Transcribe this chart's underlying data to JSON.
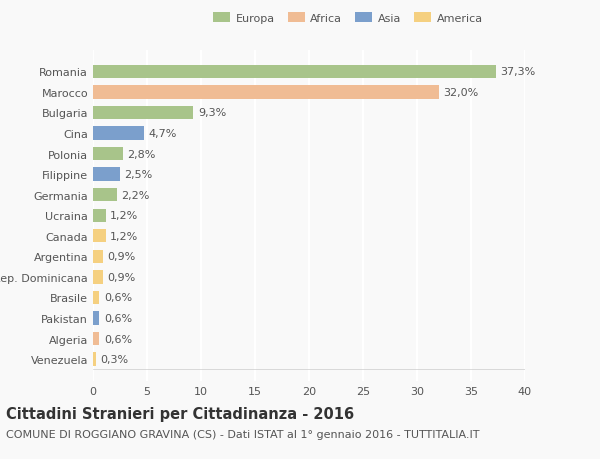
{
  "countries": [
    "Romania",
    "Marocco",
    "Bulgaria",
    "Cina",
    "Polonia",
    "Filippine",
    "Germania",
    "Ucraina",
    "Canada",
    "Argentina",
    "Rep. Dominicana",
    "Brasile",
    "Pakistan",
    "Algeria",
    "Venezuela"
  ],
  "values": [
    37.3,
    32.0,
    9.3,
    4.7,
    2.8,
    2.5,
    2.2,
    1.2,
    1.2,
    0.9,
    0.9,
    0.6,
    0.6,
    0.6,
    0.3
  ],
  "labels": [
    "37,3%",
    "32,0%",
    "9,3%",
    "4,7%",
    "2,8%",
    "2,5%",
    "2,2%",
    "1,2%",
    "1,2%",
    "0,9%",
    "0,9%",
    "0,6%",
    "0,6%",
    "0,6%",
    "0,3%"
  ],
  "colors": [
    "#a8c48a",
    "#f0bc94",
    "#a8c48a",
    "#7b9fcc",
    "#a8c48a",
    "#7b9fcc",
    "#a8c48a",
    "#a8c48a",
    "#f5d080",
    "#f5d080",
    "#f5d080",
    "#f5d080",
    "#7b9fcc",
    "#f0bc94",
    "#f5d080"
  ],
  "legend_labels": [
    "Europa",
    "Africa",
    "Asia",
    "America"
  ],
  "legend_colors": [
    "#a8c48a",
    "#f0bc94",
    "#7b9fcc",
    "#f5d080"
  ],
  "title": "Cittadini Stranieri per Cittadinanza - 2016",
  "subtitle": "COMUNE DI ROGGIANO GRAVINA (CS) - Dati ISTAT al 1° gennaio 2016 - TUTTITALIA.IT",
  "xlim": [
    0,
    40
  ],
  "xticks": [
    0,
    5,
    10,
    15,
    20,
    25,
    30,
    35,
    40
  ],
  "bg_color": "#f9f9f9",
  "grid_color": "#ffffff",
  "bar_height": 0.65,
  "label_fontsize": 8,
  "tick_fontsize": 8,
  "title_fontsize": 10.5,
  "subtitle_fontsize": 8
}
